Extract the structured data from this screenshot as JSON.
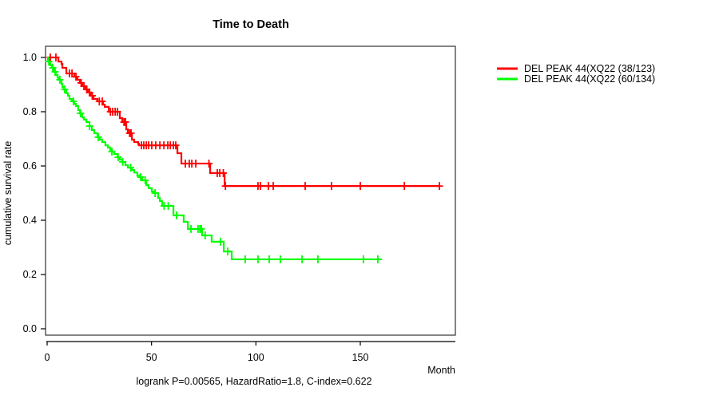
{
  "chart_data": {
    "type": "line",
    "subtype": "kaplan-meier-step-survival",
    "title": "Time to Death",
    "xlabel": "Month",
    "ylabel": "cumulative survival rate",
    "annotation": "logrank P=0.00565, HazardRatio=1.8, C-index=0.622",
    "xlim": [
      0,
      196
    ],
    "ylim": [
      0,
      1
    ],
    "x_ticks": [
      0,
      50,
      100,
      150
    ],
    "x_tick_labels": [
      "0",
      "50",
      "100",
      "150"
    ],
    "y_ticks": [
      0.0,
      0.2,
      0.4,
      0.6,
      0.8,
      1.0
    ],
    "y_tick_labels": [
      "0.0",
      "0.2",
      "0.4",
      "0.6",
      "0.8",
      "1.0"
    ],
    "grid": false,
    "legend_position": "right-outside",
    "series": [
      {
        "name": "DEL PEAK 44(XQ22 (38/123)",
        "color": "#ff0000",
        "end_month": 188,
        "steps": [
          [
            0,
            1.0
          ],
          [
            5.4,
            0.985
          ],
          [
            6.9,
            0.976
          ],
          [
            7.3,
            0.962
          ],
          [
            9.2,
            0.941
          ],
          [
            13,
            0.929
          ],
          [
            14.5,
            0.918
          ],
          [
            15.7,
            0.906
          ],
          [
            16.8,
            0.894
          ],
          [
            18.4,
            0.882
          ],
          [
            19.5,
            0.871
          ],
          [
            21,
            0.859
          ],
          [
            22.2,
            0.847
          ],
          [
            24.1,
            0.838
          ],
          [
            26.8,
            0.826
          ],
          [
            27.6,
            0.818
          ],
          [
            29.5,
            0.8
          ],
          [
            34.8,
            0.776
          ],
          [
            36,
            0.762
          ],
          [
            37.9,
            0.735
          ],
          [
            38.7,
            0.721
          ],
          [
            40.6,
            0.697
          ],
          [
            41.7,
            0.688
          ],
          [
            43.6,
            0.682
          ],
          [
            44,
            0.676
          ],
          [
            62.4,
            0.647
          ],
          [
            64.3,
            0.609
          ],
          [
            78.1,
            0.574
          ],
          [
            85,
            0.526
          ]
        ],
        "censor_months": [
          1.5,
          4.2,
          10.7,
          11.9,
          13.8,
          16.3,
          17.6,
          19,
          20.3,
          21.6,
          25,
          26.4,
          30.3,
          31.4,
          32.6,
          33.7,
          36.8,
          37.5,
          39.5,
          40.2,
          45.2,
          46.3,
          47.5,
          48.6,
          50.1,
          52,
          54,
          55.9,
          57.8,
          59,
          60.5,
          61.6,
          66.2,
          68.1,
          69.3,
          71.2,
          77.5,
          81.5,
          82.7,
          84.4,
          85.4,
          101,
          102.2,
          106,
          108.3,
          123.6,
          136.2,
          150,
          171.1,
          187.9
        ]
      },
      {
        "name": "DEL PEAK 44(XQ22 (60/134)",
        "color": "#00ff00",
        "end_month": 160.4,
        "steps": [
          [
            0,
            1.0
          ],
          [
            0.4,
            0.985
          ],
          [
            1.5,
            0.971
          ],
          [
            2.3,
            0.962
          ],
          [
            3.4,
            0.947
          ],
          [
            4.2,
            0.935
          ],
          [
            5,
            0.926
          ],
          [
            5.4,
            0.918
          ],
          [
            6.9,
            0.903
          ],
          [
            7.3,
            0.891
          ],
          [
            8,
            0.882
          ],
          [
            9.2,
            0.868
          ],
          [
            10,
            0.859
          ],
          [
            10.7,
            0.847
          ],
          [
            11.9,
            0.838
          ],
          [
            13,
            0.829
          ],
          [
            13.8,
            0.821
          ],
          [
            14.9,
            0.806
          ],
          [
            15.7,
            0.794
          ],
          [
            16.8,
            0.779
          ],
          [
            17.6,
            0.771
          ],
          [
            18.8,
            0.762
          ],
          [
            20.3,
            0.747
          ],
          [
            21.4,
            0.732
          ],
          [
            22.6,
            0.721
          ],
          [
            24.1,
            0.706
          ],
          [
            25.3,
            0.697
          ],
          [
            26.4,
            0.688
          ],
          [
            27.9,
            0.676
          ],
          [
            29.1,
            0.668
          ],
          [
            30.2,
            0.659
          ],
          [
            31,
            0.653
          ],
          [
            32.1,
            0.644
          ],
          [
            33.7,
            0.632
          ],
          [
            34.8,
            0.624
          ],
          [
            36,
            0.615
          ],
          [
            37.5,
            0.603
          ],
          [
            38.7,
            0.594
          ],
          [
            40.6,
            0.585
          ],
          [
            41.7,
            0.576
          ],
          [
            43.2,
            0.565
          ],
          [
            44.4,
            0.559
          ],
          [
            45.5,
            0.547
          ],
          [
            47.5,
            0.529
          ],
          [
            48.6,
            0.518
          ],
          [
            50.1,
            0.506
          ],
          [
            51.3,
            0.5
          ],
          [
            53.2,
            0.482
          ],
          [
            54,
            0.471
          ],
          [
            55.1,
            0.453
          ],
          [
            60.5,
            0.418
          ],
          [
            65.4,
            0.394
          ],
          [
            67.4,
            0.368
          ],
          [
            74.2,
            0.344
          ],
          [
            78.8,
            0.321
          ],
          [
            84.6,
            0.285
          ],
          [
            88.4,
            0.256
          ]
        ],
        "censor_months": [
          0.8,
          2.7,
          3.8,
          6.1,
          8.4,
          12.6,
          16,
          20.3,
          24.5,
          31,
          34,
          36.2,
          40,
          44.8,
          47,
          51.7,
          56,
          58,
          62,
          68.9,
          72.3,
          73.2,
          73.9,
          75.7,
          83,
          86.5,
          94.9,
          101,
          106.4,
          111.7,
          122.1,
          129.7,
          151.5,
          158.4
        ]
      }
    ]
  }
}
